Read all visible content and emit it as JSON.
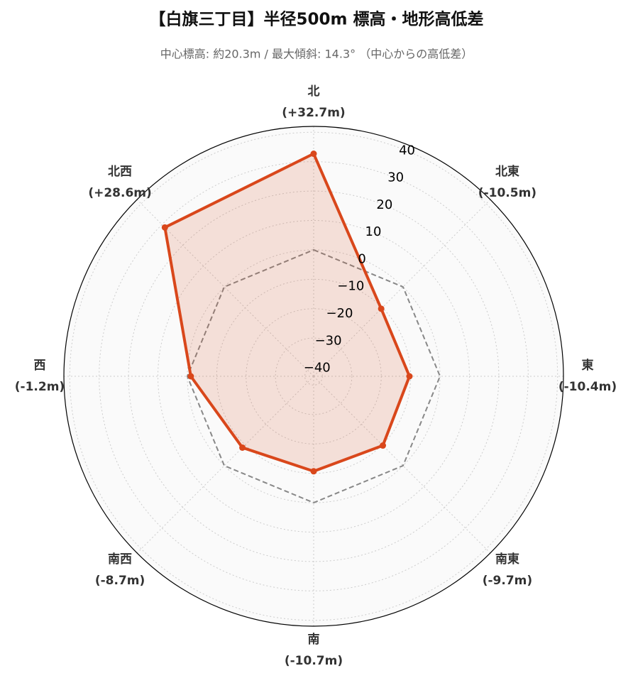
{
  "chart_data": {
    "type": "radar",
    "title": "【白旗三丁目】半径500m 標高・地形高低差",
    "subtitle": "中心標高: 約20.3m / 最大傾斜: 14.3° （中心からの高低差）",
    "categories": [
      "北",
      "北東",
      "東",
      "南東",
      "南",
      "南西",
      "西",
      "北西"
    ],
    "values": [
      32.7,
      -10.5,
      -10.4,
      -9.7,
      -10.7,
      -8.7,
      -1.2,
      28.6
    ],
    "value_labels": [
      "(+32.7m)",
      "(-10.5m)",
      "(-10.4m)",
      "(-9.7m)",
      "(-10.7m)",
      "(-8.7m)",
      "(-1.2m)",
      "(+28.6m)"
    ],
    "color": "#d9471b",
    "baseline": 0,
    "ylim": [
      -43,
      42
    ],
    "yticks": [
      {
        "value": -40,
        "label": "−40"
      },
      {
        "value": -30,
        "label": "−30"
      },
      {
        "value": -20,
        "label": "−20"
      },
      {
        "value": -10,
        "label": "−10"
      },
      0,
      10,
      20,
      30,
      40
    ],
    "grid": true
  }
}
